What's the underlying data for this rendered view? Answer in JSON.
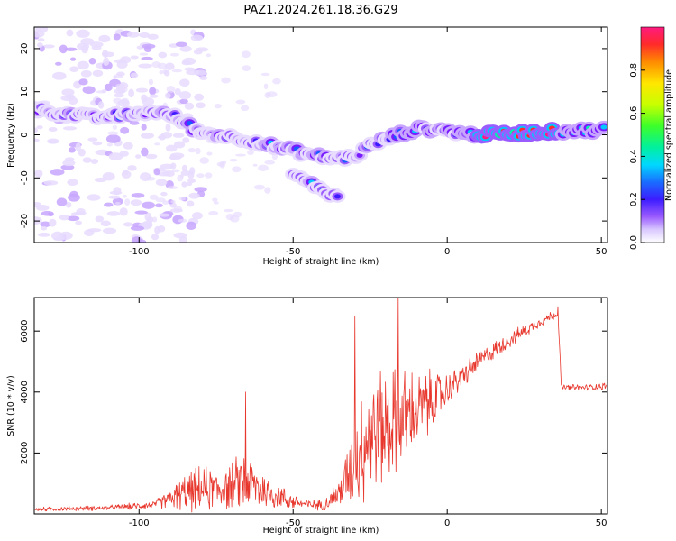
{
  "title": "PAZ1.2024.261.18.36.G29",
  "colors": {
    "snr_line": "#e8382e",
    "spectrogram_palette": [
      "#ffffff",
      "#e8dcff",
      "#c8a6ff",
      "#9b5cff",
      "#7a1aff",
      "#3c1cff",
      "#1a5cff",
      "#00c8ff",
      "#00f0b0",
      "#4cff2a",
      "#c8ff00",
      "#ffe600",
      "#ff8a00",
      "#ff2a2a",
      "#ff1a80"
    ]
  },
  "chart_data": [
    {
      "type": "heatmap",
      "xlabel": "Height of straight line (km)",
      "ylabel": "Frequency (Hz)",
      "xlim": [
        -134,
        52
      ],
      "ylim": [
        -25,
        25
      ],
      "xticks": [
        -100,
        -50,
        0,
        50
      ],
      "yticks": [
        -20,
        -10,
        0,
        10,
        20
      ],
      "ridge": {
        "description_points_x": [
          -134,
          -125,
          -115,
          -105,
          -95,
          -88,
          -80,
          -70,
          -62,
          -55,
          -48,
          -42,
          -35,
          -30,
          -25,
          -20,
          -14,
          -8,
          0,
          5,
          10,
          20,
          35,
          52
        ],
        "description_points_y": [
          6,
          5,
          4,
          4.5,
          5.5,
          4,
          0.5,
          -0.5,
          -1.5,
          -3,
          -4,
          -5,
          -5.5,
          -5,
          -2.5,
          -1,
          0.5,
          1.5,
          1,
          0.3,
          0,
          0.3,
          0.8,
          1.2
        ]
      },
      "branch": {
        "x": [
          -50,
          -46,
          -42,
          -38,
          -35
        ],
        "y": [
          -9,
          -11,
          -12,
          -13.5,
          -15
        ]
      },
      "colorbar": {
        "label": "Normalized spectral amplitude",
        "range": [
          0.0,
          1.0
        ],
        "ticks": [
          0.0,
          0.2,
          0.4,
          0.6,
          0.8
        ]
      }
    },
    {
      "type": "line",
      "xlabel": "Height of straight line (km)",
      "ylabel": "SNR (10 * v/v)",
      "xlim": [
        -134,
        52
      ],
      "ylim": [
        0,
        7100
      ],
      "xticks": [
        -100,
        -50,
        0,
        50
      ],
      "yticks": [
        2000,
        4000,
        6000
      ],
      "envelope": {
        "x": [
          -134,
          -110,
          -95,
          -90,
          -85,
          -80,
          -75,
          -70,
          -66,
          -62,
          -58,
          -55,
          -50,
          -45,
          -40,
          -35,
          -31,
          -28,
          -25,
          -20,
          -15,
          -10,
          -5,
          -2,
          0,
          5,
          10,
          20,
          30,
          36,
          37,
          40,
          45,
          52
        ],
        "base": [
          150,
          200,
          300,
          500,
          700,
          800,
          800,
          900,
          1100,
          900,
          700,
          600,
          400,
          300,
          300,
          700,
          1500,
          2200,
          2600,
          2900,
          3100,
          3400,
          3700,
          3900,
          4100,
          4500,
          5000,
          5700,
          6300,
          6600,
          4150,
          4150,
          4150,
          4200
        ],
        "amp": [
          80,
          100,
          150,
          400,
          700,
          900,
          800,
          900,
          1200,
          900,
          700,
          500,
          300,
          200,
          200,
          600,
          1400,
          2200,
          2400,
          2200,
          2000,
          1500,
          1200,
          900,
          600,
          500,
          400,
          300,
          200,
          200,
          120,
          120,
          120,
          150
        ]
      },
      "peaks": [
        {
          "x": -65.5,
          "y": 4000
        },
        {
          "x": -30,
          "y": 6500
        },
        {
          "x": -16,
          "y": 7100
        },
        {
          "x": 36,
          "y": 6800
        }
      ]
    }
  ]
}
